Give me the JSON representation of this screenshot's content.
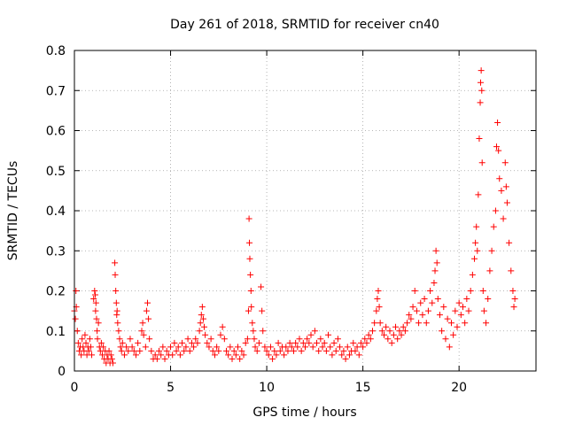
{
  "chart_data": {
    "type": "scatter",
    "title": "Day 261 of 2018, SRMTID for receiver cn40",
    "xlabel": "GPS time / hours",
    "ylabel": "SRMTID / TECUs",
    "xlim": [
      0,
      24
    ],
    "ylim": [
      0,
      0.8
    ],
    "xticks": [
      0,
      5,
      10,
      15,
      20
    ],
    "xtick_labels": [
      "0",
      "5",
      "10",
      "15",
      "20"
    ],
    "yticks": [
      0,
      0.1,
      0.2,
      0.3,
      0.4,
      0.5,
      0.6,
      0.7,
      0.8
    ],
    "ytick_labels": [
      "0",
      "0.1",
      "0.2",
      "0.3",
      "0.4",
      "0.5",
      "0.6",
      "0.7",
      "0.8"
    ],
    "grid": true,
    "marker": "+",
    "marker_color": "#ff0000",
    "series": [
      {
        "name": "cn40",
        "points": [
          [
            0.0,
            0.15
          ],
          [
            0.05,
            0.13
          ],
          [
            0.08,
            0.2
          ],
          [
            0.1,
            0.16
          ],
          [
            0.15,
            0.1
          ],
          [
            0.2,
            0.07
          ],
          [
            0.25,
            0.05
          ],
          [
            0.3,
            0.06
          ],
          [
            0.35,
            0.04
          ],
          [
            0.4,
            0.08
          ],
          [
            0.45,
            0.06
          ],
          [
            0.5,
            0.05
          ],
          [
            0.55,
            0.09
          ],
          [
            0.6,
            0.07
          ],
          [
            0.65,
            0.04
          ],
          [
            0.7,
            0.06
          ],
          [
            0.75,
            0.05
          ],
          [
            0.8,
            0.08
          ],
          [
            0.85,
            0.06
          ],
          [
            0.9,
            0.04
          ],
          [
            1.0,
            0.18
          ],
          [
            1.05,
            0.2
          ],
          [
            1.08,
            0.19
          ],
          [
            1.1,
            0.15
          ],
          [
            1.12,
            0.17
          ],
          [
            1.15,
            0.13
          ],
          [
            1.18,
            0.1
          ],
          [
            1.2,
            0.08
          ],
          [
            1.25,
            0.12
          ],
          [
            1.3,
            0.06
          ],
          [
            1.35,
            0.05
          ],
          [
            1.4,
            0.07
          ],
          [
            1.45,
            0.04
          ],
          [
            1.5,
            0.06
          ],
          [
            1.55,
            0.03
          ],
          [
            1.6,
            0.05
          ],
          [
            1.65,
            0.02
          ],
          [
            1.7,
            0.04
          ],
          [
            1.75,
            0.03
          ],
          [
            1.8,
            0.05
          ],
          [
            1.85,
            0.02
          ],
          [
            1.9,
            0.04
          ],
          [
            1.95,
            0.03
          ],
          [
            2.0,
            0.02
          ],
          [
            2.1,
            0.27
          ],
          [
            2.12,
            0.24
          ],
          [
            2.15,
            0.2
          ],
          [
            2.18,
            0.17
          ],
          [
            2.2,
            0.14
          ],
          [
            2.22,
            0.15
          ],
          [
            2.25,
            0.12
          ],
          [
            2.3,
            0.1
          ],
          [
            2.35,
            0.08
          ],
          [
            2.4,
            0.06
          ],
          [
            2.45,
            0.05
          ],
          [
            2.5,
            0.07
          ],
          [
            2.6,
            0.04
          ],
          [
            2.7,
            0.06
          ],
          [
            2.8,
            0.05
          ],
          [
            2.9,
            0.08
          ],
          [
            3.0,
            0.06
          ],
          [
            3.1,
            0.05
          ],
          [
            3.2,
            0.04
          ],
          [
            3.3,
            0.07
          ],
          [
            3.4,
            0.05
          ],
          [
            3.5,
            0.1
          ],
          [
            3.55,
            0.12
          ],
          [
            3.6,
            0.09
          ],
          [
            3.7,
            0.06
          ],
          [
            3.75,
            0.15
          ],
          [
            3.8,
            0.17
          ],
          [
            3.85,
            0.13
          ],
          [
            3.9,
            0.08
          ],
          [
            4.0,
            0.05
          ],
          [
            4.1,
            0.03
          ],
          [
            4.2,
            0.04
          ],
          [
            4.3,
            0.03
          ],
          [
            4.4,
            0.05
          ],
          [
            4.5,
            0.04
          ],
          [
            4.6,
            0.06
          ],
          [
            4.7,
            0.03
          ],
          [
            4.8,
            0.05
          ],
          [
            4.9,
            0.04
          ],
          [
            5.0,
            0.06
          ],
          [
            5.1,
            0.04
          ],
          [
            5.2,
            0.07
          ],
          [
            5.3,
            0.05
          ],
          [
            5.4,
            0.06
          ],
          [
            5.5,
            0.04
          ],
          [
            5.6,
            0.07
          ],
          [
            5.7,
            0.05
          ],
          [
            5.8,
            0.06
          ],
          [
            5.9,
            0.08
          ],
          [
            6.0,
            0.05
          ],
          [
            6.1,
            0.07
          ],
          [
            6.2,
            0.06
          ],
          [
            6.3,
            0.08
          ],
          [
            6.4,
            0.07
          ],
          [
            6.5,
            0.1
          ],
          [
            6.55,
            0.12
          ],
          [
            6.6,
            0.14
          ],
          [
            6.65,
            0.16
          ],
          [
            6.7,
            0.13
          ],
          [
            6.75,
            0.11
          ],
          [
            6.8,
            0.09
          ],
          [
            6.9,
            0.07
          ],
          [
            7.0,
            0.06
          ],
          [
            7.1,
            0.08
          ],
          [
            7.2,
            0.05
          ],
          [
            7.3,
            0.04
          ],
          [
            7.4,
            0.06
          ],
          [
            7.5,
            0.05
          ],
          [
            7.6,
            0.09
          ],
          [
            7.7,
            0.11
          ],
          [
            7.8,
            0.08
          ],
          [
            7.9,
            0.05
          ],
          [
            8.0,
            0.04
          ],
          [
            8.1,
            0.06
          ],
          [
            8.2,
            0.03
          ],
          [
            8.3,
            0.05
          ],
          [
            8.4,
            0.04
          ],
          [
            8.5,
            0.06
          ],
          [
            8.6,
            0.03
          ],
          [
            8.7,
            0.05
          ],
          [
            8.8,
            0.04
          ],
          [
            8.9,
            0.07
          ],
          [
            9.0,
            0.08
          ],
          [
            9.05,
            0.15
          ],
          [
            9.08,
            0.38
          ],
          [
            9.1,
            0.32
          ],
          [
            9.12,
            0.28
          ],
          [
            9.15,
            0.24
          ],
          [
            9.18,
            0.2
          ],
          [
            9.2,
            0.16
          ],
          [
            9.25,
            0.12
          ],
          [
            9.3,
            0.1
          ],
          [
            9.35,
            0.08
          ],
          [
            9.4,
            0.06
          ],
          [
            9.5,
            0.05
          ],
          [
            9.6,
            0.07
          ],
          [
            9.7,
            0.21
          ],
          [
            9.75,
            0.15
          ],
          [
            9.8,
            0.1
          ],
          [
            9.9,
            0.06
          ],
          [
            10.0,
            0.05
          ],
          [
            10.1,
            0.04
          ],
          [
            10.2,
            0.06
          ],
          [
            10.3,
            0.03
          ],
          [
            10.4,
            0.05
          ],
          [
            10.5,
            0.04
          ],
          [
            10.6,
            0.07
          ],
          [
            10.7,
            0.05
          ],
          [
            10.8,
            0.06
          ],
          [
            10.9,
            0.04
          ],
          [
            11.0,
            0.06
          ],
          [
            11.1,
            0.05
          ],
          [
            11.2,
            0.07
          ],
          [
            11.3,
            0.06
          ],
          [
            11.4,
            0.05
          ],
          [
            11.5,
            0.07
          ],
          [
            11.6,
            0.06
          ],
          [
            11.7,
            0.08
          ],
          [
            11.8,
            0.05
          ],
          [
            11.9,
            0.07
          ],
          [
            12.0,
            0.06
          ],
          [
            12.1,
            0.08
          ],
          [
            12.2,
            0.07
          ],
          [
            12.3,
            0.09
          ],
          [
            12.4,
            0.06
          ],
          [
            12.5,
            0.1
          ],
          [
            12.6,
            0.07
          ],
          [
            12.7,
            0.05
          ],
          [
            12.8,
            0.08
          ],
          [
            12.9,
            0.06
          ],
          [
            13.0,
            0.07
          ],
          [
            13.1,
            0.05
          ],
          [
            13.2,
            0.09
          ],
          [
            13.3,
            0.06
          ],
          [
            13.4,
            0.04
          ],
          [
            13.5,
            0.07
          ],
          [
            13.6,
            0.05
          ],
          [
            13.7,
            0.08
          ],
          [
            13.8,
            0.06
          ],
          [
            13.9,
            0.04
          ],
          [
            14.0,
            0.05
          ],
          [
            14.1,
            0.03
          ],
          [
            14.2,
            0.06
          ],
          [
            14.3,
            0.04
          ],
          [
            14.4,
            0.05
          ],
          [
            14.5,
            0.07
          ],
          [
            14.6,
            0.05
          ],
          [
            14.7,
            0.06
          ],
          [
            14.8,
            0.04
          ],
          [
            14.9,
            0.07
          ],
          [
            15.0,
            0.06
          ],
          [
            15.1,
            0.08
          ],
          [
            15.2,
            0.07
          ],
          [
            15.3,
            0.09
          ],
          [
            15.4,
            0.08
          ],
          [
            15.5,
            0.1
          ],
          [
            15.6,
            0.12
          ],
          [
            15.7,
            0.15
          ],
          [
            15.75,
            0.18
          ],
          [
            15.8,
            0.2
          ],
          [
            15.85,
            0.16
          ],
          [
            15.9,
            0.12
          ],
          [
            16.0,
            0.1
          ],
          [
            16.1,
            0.09
          ],
          [
            16.2,
            0.11
          ],
          [
            16.3,
            0.08
          ],
          [
            16.4,
            0.1
          ],
          [
            16.5,
            0.07
          ],
          [
            16.6,
            0.09
          ],
          [
            16.7,
            0.11
          ],
          [
            16.8,
            0.08
          ],
          [
            16.9,
            0.1
          ],
          [
            17.0,
            0.09
          ],
          [
            17.1,
            0.11
          ],
          [
            17.2,
            0.1
          ],
          [
            17.3,
            0.12
          ],
          [
            17.4,
            0.14
          ],
          [
            17.5,
            0.13
          ],
          [
            17.6,
            0.16
          ],
          [
            17.7,
            0.2
          ],
          [
            17.8,
            0.15
          ],
          [
            17.9,
            0.12
          ],
          [
            18.0,
            0.17
          ],
          [
            18.1,
            0.14
          ],
          [
            18.2,
            0.18
          ],
          [
            18.3,
            0.12
          ],
          [
            18.4,
            0.15
          ],
          [
            18.5,
            0.2
          ],
          [
            18.6,
            0.17
          ],
          [
            18.7,
            0.22
          ],
          [
            18.75,
            0.25
          ],
          [
            18.8,
            0.3
          ],
          [
            18.85,
            0.27
          ],
          [
            18.9,
            0.18
          ],
          [
            19.0,
            0.14
          ],
          [
            19.1,
            0.1
          ],
          [
            19.2,
            0.16
          ],
          [
            19.3,
            0.08
          ],
          [
            19.4,
            0.13
          ],
          [
            19.5,
            0.06
          ],
          [
            19.6,
            0.12
          ],
          [
            19.7,
            0.09
          ],
          [
            19.8,
            0.15
          ],
          [
            19.9,
            0.11
          ],
          [
            20.0,
            0.17
          ],
          [
            20.1,
            0.14
          ],
          [
            20.2,
            0.16
          ],
          [
            20.3,
            0.12
          ],
          [
            20.4,
            0.18
          ],
          [
            20.5,
            0.15
          ],
          [
            20.6,
            0.2
          ],
          [
            20.7,
            0.24
          ],
          [
            20.8,
            0.28
          ],
          [
            20.85,
            0.32
          ],
          [
            20.9,
            0.36
          ],
          [
            20.95,
            0.3
          ],
          [
            21.0,
            0.44
          ],
          [
            21.05,
            0.58
          ],
          [
            21.1,
            0.67
          ],
          [
            21.12,
            0.72
          ],
          [
            21.15,
            0.75
          ],
          [
            21.18,
            0.7
          ],
          [
            21.2,
            0.52
          ],
          [
            21.25,
            0.2
          ],
          [
            21.3,
            0.15
          ],
          [
            21.4,
            0.12
          ],
          [
            21.5,
            0.18
          ],
          [
            21.6,
            0.25
          ],
          [
            21.7,
            0.3
          ],
          [
            21.8,
            0.36
          ],
          [
            21.9,
            0.4
          ],
          [
            21.95,
            0.56
          ],
          [
            22.0,
            0.62
          ],
          [
            22.05,
            0.55
          ],
          [
            22.1,
            0.48
          ],
          [
            22.2,
            0.45
          ],
          [
            22.3,
            0.38
          ],
          [
            22.4,
            0.52
          ],
          [
            22.45,
            0.46
          ],
          [
            22.5,
            0.42
          ],
          [
            22.6,
            0.32
          ],
          [
            22.7,
            0.25
          ],
          [
            22.8,
            0.2
          ],
          [
            22.85,
            0.16
          ],
          [
            22.9,
            0.18
          ]
        ]
      }
    ]
  }
}
